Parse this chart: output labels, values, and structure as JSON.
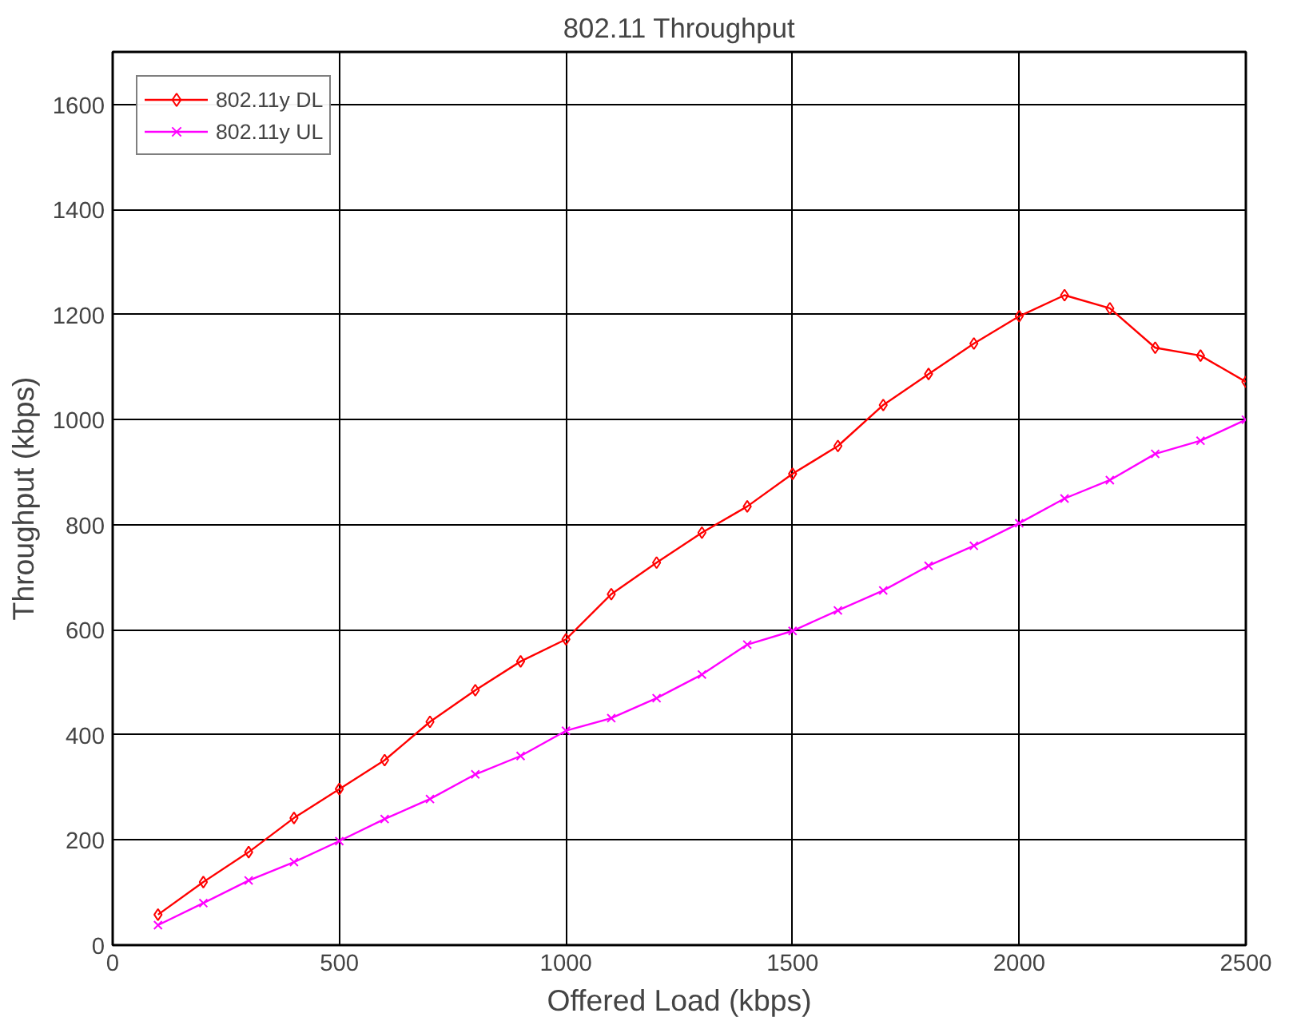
{
  "chart_data": {
    "type": "line",
    "title": "802.11 Throughput",
    "xlabel": "Offered Load (kbps)",
    "ylabel": "Throughput (kbps)",
    "x": [
      100,
      200,
      300,
      400,
      500,
      600,
      700,
      800,
      900,
      1000,
      1100,
      1200,
      1300,
      1400,
      1500,
      1600,
      1700,
      1800,
      1900,
      2000,
      2100,
      2200,
      2300,
      2400,
      2500
    ],
    "series": [
      {
        "name": "802.11y DL",
        "color": "#ff0000",
        "marker": "diamond",
        "values": [
          58,
          120,
          177,
          242,
          297,
          352,
          425,
          485,
          540,
          582,
          668,
          728,
          785,
          835,
          897,
          950,
          1028,
          1087,
          1145,
          1197,
          1237,
          1212,
          1137,
          1122,
          1072
        ]
      },
      {
        "name": "802.11y UL",
        "color": "#ff00ff",
        "marker": "cross",
        "values": [
          38,
          80,
          123,
          158,
          198,
          240,
          278,
          325,
          360,
          408,
          432,
          470,
          515,
          572,
          598,
          637,
          675,
          722,
          760,
          803,
          850,
          885,
          935,
          960,
          1000
        ]
      }
    ],
    "xlim": [
      0,
      2500
    ],
    "xticks": [
      0,
      500,
      1000,
      1500,
      2000,
      2500
    ],
    "ylim": [
      0,
      1700
    ],
    "yticks": [
      0,
      200,
      400,
      600,
      800,
      1000,
      1200,
      1400,
      1600
    ],
    "grid": true,
    "legend": "top left",
    "line_style": "solid"
  }
}
